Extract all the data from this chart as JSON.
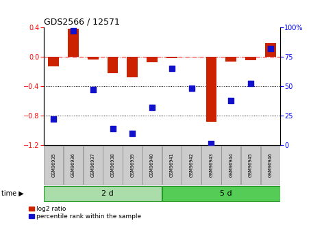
{
  "title": "GDS2566 / 12571",
  "samples": [
    "GSM96935",
    "GSM96936",
    "GSM96937",
    "GSM96938",
    "GSM96939",
    "GSM96940",
    "GSM96941",
    "GSM96942",
    "GSM96943",
    "GSM96944",
    "GSM96945",
    "GSM96946"
  ],
  "log2_ratio": [
    -0.13,
    0.38,
    -0.04,
    -0.22,
    -0.28,
    -0.08,
    -0.02,
    0.0,
    -0.88,
    -0.07,
    -0.05,
    0.18
  ],
  "pct_rank": [
    22,
    97,
    47,
    14,
    10,
    32,
    65,
    48,
    1,
    38,
    52,
    82
  ],
  "group1_label": "2 d",
  "group1_count": 6,
  "group2_label": "5 d",
  "group2_count": 6,
  "ylim_left": [
    -1.2,
    0.4
  ],
  "ylim_right": [
    0,
    100
  ],
  "yticks_left": [
    0.4,
    0.0,
    -0.4,
    -0.8,
    -1.2
  ],
  "yticks_right": [
    100,
    75,
    50,
    25,
    0
  ],
  "bar_color": "#cc2200",
  "dot_color": "#1111cc",
  "bar_width": 0.55,
  "dot_size": 28,
  "legend_bar_label": "log2 ratio",
  "legend_dot_label": "percentile rank within the sample",
  "group1_color": "#aaddaa",
  "group2_color": "#55cc55",
  "sample_box_color": "#cccccc",
  "bg_color": "#ffffff"
}
